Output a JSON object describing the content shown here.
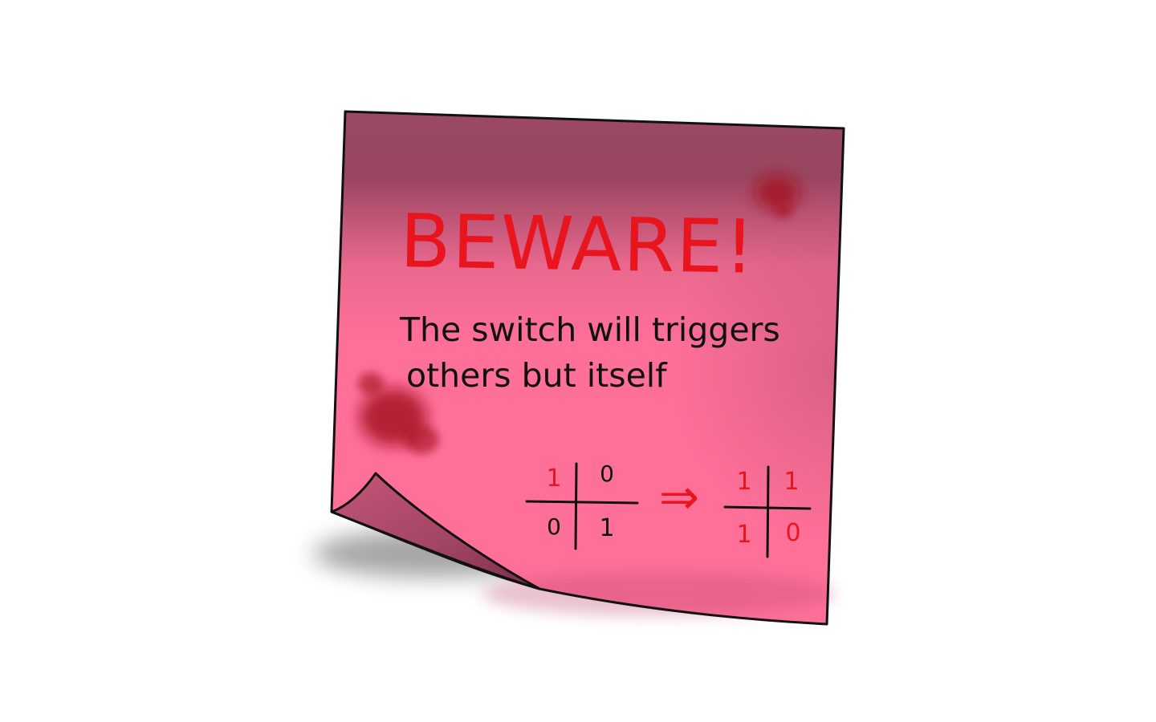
{
  "note": {
    "heading": "BEWARE!",
    "body_line_1": "The switch will triggers",
    "body_line_2": "others but itself",
    "colors": {
      "paper": "#ff7099",
      "paper_shadow": "#9a4660",
      "heading_ink": "#e8141e",
      "body_ink": "#111111",
      "stain": "#a3101c"
    }
  },
  "grids": {
    "before": {
      "top_left": "1",
      "top_right": "0",
      "bottom_left": "0",
      "bottom_right": "1"
    },
    "arrow": "⇒",
    "after": {
      "top_left": "1",
      "top_right": "1",
      "bottom_left": "1",
      "bottom_right": "0"
    }
  }
}
